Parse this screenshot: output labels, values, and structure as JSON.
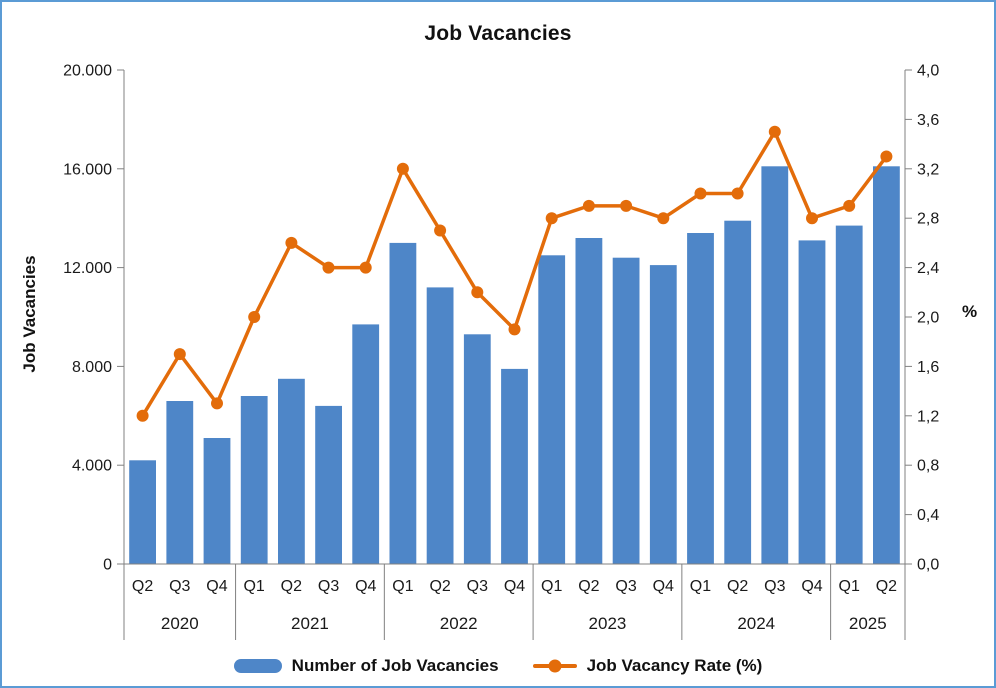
{
  "colors": {
    "bar": "#4E86C8",
    "line": "#E36C0A",
    "frame": "#5B9BD5",
    "axis": "#808080",
    "text": "#1a1a1a"
  },
  "chart_data": {
    "type": "bar",
    "title": "Job Vacancies",
    "categories": [
      "Q2",
      "Q3",
      "Q4",
      "Q1",
      "Q2",
      "Q3",
      "Q4",
      "Q1",
      "Q2",
      "Q3",
      "Q4",
      "Q1",
      "Q2",
      "Q3",
      "Q4",
      "Q1",
      "Q2",
      "Q3",
      "Q4",
      "Q1",
      "Q2"
    ],
    "year_groups": [
      {
        "label": "2020",
        "count": 3
      },
      {
        "label": "2021",
        "count": 4
      },
      {
        "label": "2022",
        "count": 4
      },
      {
        "label": "2023",
        "count": 4
      },
      {
        "label": "2024",
        "count": 4
      },
      {
        "label": "2025",
        "count": 2
      }
    ],
    "series": [
      {
        "name": "Number of Job Vacancies",
        "type": "bar",
        "axis": "left",
        "values": [
          4200,
          6600,
          5100,
          6800,
          7500,
          6400,
          9700,
          13000,
          11200,
          9300,
          7900,
          12500,
          13200,
          12400,
          12100,
          13400,
          13900,
          16100,
          13100,
          13700,
          16100
        ]
      },
      {
        "name": "Job Vacancy Rate (%)",
        "type": "line",
        "axis": "right",
        "values": [
          1.2,
          1.7,
          1.3,
          2.0,
          2.6,
          2.4,
          2.4,
          3.2,
          2.7,
          2.2,
          1.9,
          2.8,
          2.9,
          2.9,
          2.8,
          3.0,
          3.0,
          3.5,
          2.8,
          2.9,
          3.3
        ]
      }
    ],
    "left_axis": {
      "label": "Job Vacancies",
      "min": 0,
      "max": 20000,
      "step": 4000,
      "tick_labels": [
        "0",
        "4.000",
        "8.000",
        "12.000",
        "16.000",
        "20.000"
      ]
    },
    "right_axis": {
      "label": "%",
      "min": 0,
      "max": 4,
      "step": 0.4,
      "tick_labels": [
        "0,0",
        "0,4",
        "0,8",
        "1,2",
        "1,6",
        "2,0",
        "2,4",
        "2,8",
        "3,2",
        "3,6",
        "4,0"
      ]
    },
    "legend_position": "bottom",
    "grid": false
  }
}
